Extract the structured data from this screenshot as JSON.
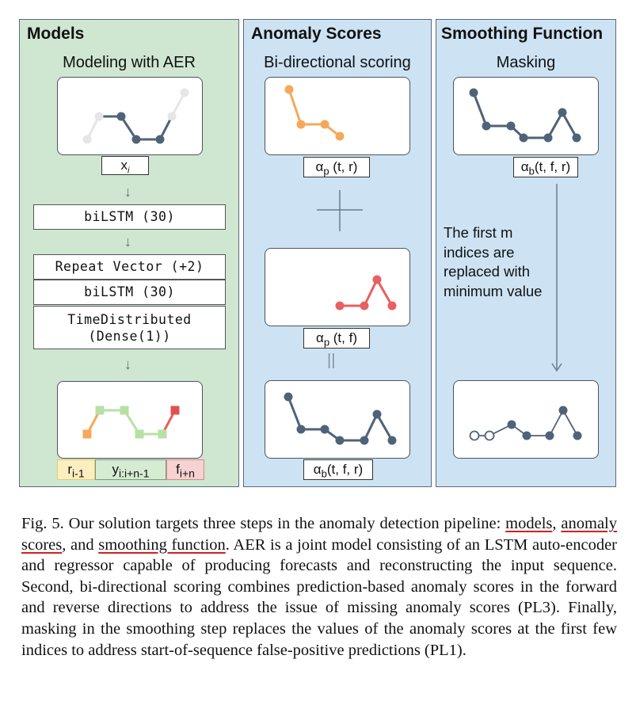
{
  "models": {
    "title": "Models",
    "subtitle": "Modeling with AER",
    "input_label": "x",
    "input_sub": "i",
    "arrow": "↓",
    "layers": [
      "biLSTM (30)",
      "Repeat Vector (+2)",
      "biLSTM (30)",
      "TimeDistributed\n(Dense(1))"
    ],
    "outputs": [
      "r",
      "y",
      "f"
    ],
    "output_subs": [
      "i-1",
      "i:i+n-1",
      "i+n"
    ],
    "output_colors": [
      "#fbeec0",
      "#d6ecd2",
      "#f6d2d2"
    ]
  },
  "scores": {
    "title": "Anomaly Scores",
    "subtitle": "Bi-directional scoring",
    "labels": [
      {
        "greek": "α",
        "sub": "p",
        "args": " (t, r)"
      },
      {
        "greek": "α",
        "sub": "p",
        "args": " (t, f)"
      },
      {
        "greek": "α",
        "sub": "b",
        "args": "(t, f, r)"
      }
    ],
    "plus": "+",
    "equals": "||"
  },
  "smoothing": {
    "title": "Smoothing Function",
    "subtitle": "Masking",
    "label": {
      "greek": "α",
      "sub": "b",
      "args": "(t, f, r)"
    },
    "note_lines": [
      "The first m",
      "indices are",
      "replaced with",
      "minimum value"
    ]
  },
  "caption": {
    "fig": "Fig. 5.",
    "text1": " Our solution targets three steps in the anomaly detection pipeline: ",
    "u1": "models",
    "sep1": ", ",
    "u2": "anomaly scores",
    "sep2": ", and ",
    "u3": "smoothing function",
    "text2": ". AER is a joint model consisting of an LSTM auto-encoder and regressor capable of producing forecasts and reconstructing the input sequence. Second, bi-directional scoring combines prediction-based anomaly scores in the forward and reverse directions to address the issue of missing anomaly scores (PL3). Finally, masking in the smoothing step replaces the values of the anomaly scores at the first few indices to address start-of-sequence false-positive predictions (PL1)."
  },
  "colors": {
    "line_dark": "#4f6378",
    "line_light": "#e6e6e6",
    "orange": "#f4a95a",
    "red": "#e86060",
    "green": "#b7e0a6",
    "red_square": "#e05050"
  }
}
